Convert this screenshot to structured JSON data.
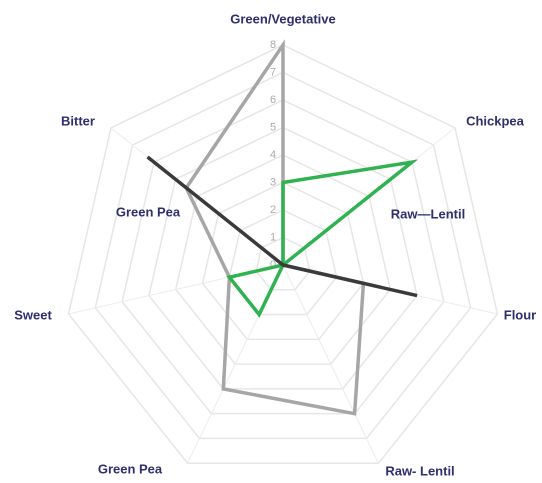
{
  "chart_data": {
    "type": "radar",
    "categories": [
      "Green/Vegetative",
      "Chickpea",
      "Flour",
      "Raw- Lentil",
      "Green Pea",
      "Sweet",
      "Bitter"
    ],
    "ylim": [
      0,
      8
    ],
    "yticks": [
      0,
      1,
      2,
      3,
      4,
      5,
      6,
      7,
      8
    ],
    "grid": true,
    "series": [
      {
        "name": "Green Pea",
        "color": "#a6a6a6",
        "values": [
          8,
          0,
          3,
          6,
          5,
          2,
          4.5
        ]
      },
      {
        "name": "Raw—Lentil",
        "color": "#2fb24f",
        "values": [
          3,
          6,
          0,
          0,
          2,
          2,
          0
        ]
      },
      {
        "color": "#3a3a3a",
        "values": [
          0,
          0,
          5,
          0,
          0,
          0,
          6.3
        ]
      }
    ]
  }
}
